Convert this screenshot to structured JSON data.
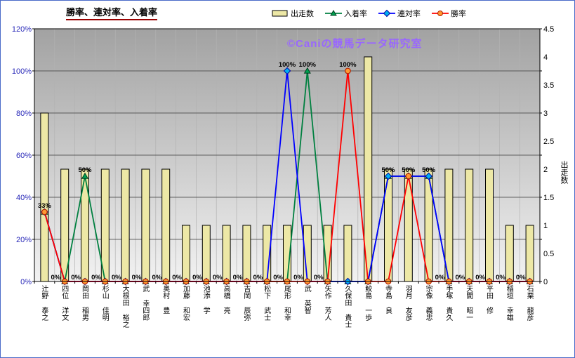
{
  "title": "勝率、連対率、入着率",
  "watermark": "©Caniの競馬データ研究室",
  "legend": [
    {
      "key": "starts",
      "label": "出走数",
      "type": "bar"
    },
    {
      "key": "place",
      "label": "入着率",
      "type": "line",
      "marker": "triangle",
      "line_color": "#008040",
      "fill_color": "#00A050",
      "edge_color": "#004020"
    },
    {
      "key": "quinella",
      "label": "連対率",
      "type": "line",
      "marker": "diamond",
      "line_color": "#0000FF",
      "fill_color": "#00B0F0",
      "edge_color": "#0000A0"
    },
    {
      "key": "win",
      "label": "勝率",
      "type": "line",
      "marker": "circle",
      "line_color": "#FF0000",
      "fill_color": "#FF9933",
      "edge_color": "#B22000"
    }
  ],
  "colors": {
    "plot_top": "#A2A2A2",
    "plot_bottom": "#F2F2F2",
    "left_axis_text": "#2828B8",
    "right_axis_text": "#000000",
    "gridline": "#3A3A3A",
    "vertical_gridline": "#B2B2B2",
    "title_underline": "#990000",
    "watermark_color": "#9966FF",
    "outer_border": "#4A6BC8"
  },
  "chart_data": {
    "type": "combo-bar-line",
    "categories": [
      "辻野 泰之",
      "四位 洋文",
      "岡田 稲男",
      "杉山 佳明",
      "大根田 裕之",
      "武 幸四郎",
      "奥村 豊",
      "加藤 和宏",
      "池添 学",
      "高橋 亮",
      "吉岡 辰弥",
      "松下 武士",
      "尾形 和幸",
      "武 英智",
      "矢作 芳人",
      "久保田 貴士",
      "鮫島 一歩",
      "寺島 良",
      "羽月 友彦",
      "宗像 義忠",
      "手塚 貴久",
      "天間 昭一",
      "平田 修",
      "稲垣 幸雄",
      "石栗 龍彦"
    ],
    "bar_series": {
      "name": "出走数",
      "axis": "right",
      "color": "#EDE8A6",
      "border": "#000000",
      "values": [
        3,
        2,
        2,
        2,
        2,
        2,
        2,
        1,
        1,
        1,
        1,
        1,
        1,
        1,
        1,
        1,
        4,
        2,
        2,
        2,
        2,
        2,
        2,
        1,
        1
      ]
    },
    "line_series": [
      {
        "name": "入着率",
        "axis": "left",
        "marker": "triangle",
        "line_color": "#008040",
        "fill_color": "#00A050",
        "edge_color": "#004020",
        "values": [
          33,
          0,
          50,
          0,
          0,
          0,
          0,
          0,
          0,
          0,
          0,
          0,
          0,
          100,
          0,
          0,
          0,
          50,
          50,
          50,
          0,
          0,
          0,
          0,
          0
        ]
      },
      {
        "name": "連対率",
        "axis": "left",
        "marker": "diamond",
        "line_color": "#0000FF",
        "fill_color": "#00B0F0",
        "edge_color": "#0000A0",
        "values": [
          33,
          0,
          0,
          0,
          0,
          0,
          0,
          0,
          0,
          0,
          0,
          0,
          100,
          0,
          0,
          0,
          0,
          50,
          50,
          50,
          0,
          0,
          0,
          0,
          0
        ]
      },
      {
        "name": "勝率",
        "axis": "left",
        "marker": "circle",
        "line_color": "#FF0000",
        "fill_color": "#FF9933",
        "edge_color": "#B22000",
        "values": [
          33,
          0,
          0,
          0,
          0,
          0,
          0,
          0,
          0,
          0,
          0,
          0,
          0,
          0,
          0,
          100,
          0,
          0,
          50,
          0,
          0,
          0,
          0,
          0,
          0
        ]
      }
    ],
    "left_axis": {
      "min": 0,
      "max": 120,
      "step": 20,
      "suffix": "%",
      "ticks": [
        "0%",
        "20%",
        "40%",
        "60%",
        "80%",
        "100%",
        "120%"
      ]
    },
    "right_axis": {
      "title": "出走数",
      "min": 0,
      "max": 4.5,
      "step": 0.5,
      "ticks": [
        "0",
        "0.5",
        "1",
        "1.5",
        "2",
        "2.5",
        "3",
        "3.5",
        "4",
        "4.5"
      ]
    },
    "point_labels": [
      {
        "i": 0,
        "pct": 33,
        "text": "33%",
        "pos": "above"
      },
      {
        "i": 2,
        "pct": 50,
        "text": "50%",
        "pos": "above"
      },
      {
        "i": 12,
        "pct": 100,
        "text": "100%",
        "pos": "above"
      },
      {
        "i": 13,
        "pct": 100,
        "text": "100%",
        "pos": "above"
      },
      {
        "i": 15,
        "pct": 100,
        "text": "100%",
        "pos": "above"
      },
      {
        "i": 17,
        "pct": 50,
        "text": "50%",
        "pos": "above"
      },
      {
        "i": 18,
        "pct": 50,
        "text": "50%",
        "pos": "above"
      },
      {
        "i": 19,
        "pct": 50,
        "text": "50%",
        "pos": "above"
      },
      {
        "i": 1,
        "pct": 0,
        "text": "0%",
        "pos": "left"
      },
      {
        "i": 2,
        "pct": 0,
        "text": "0%",
        "pos": "left"
      },
      {
        "i": 3,
        "pct": 0,
        "text": "0%",
        "pos": "left"
      },
      {
        "i": 4,
        "pct": 0,
        "text": "0%",
        "pos": "left"
      },
      {
        "i": 5,
        "pct": 0,
        "text": "0%",
        "pos": "left"
      },
      {
        "i": 6,
        "pct": 0,
        "text": "0%",
        "pos": "left"
      },
      {
        "i": 7,
        "pct": 0,
        "text": "0%",
        "pos": "left"
      },
      {
        "i": 8,
        "pct": 0,
        "text": "0%",
        "pos": "left"
      },
      {
        "i": 9,
        "pct": 0,
        "text": "0%",
        "pos": "left"
      },
      {
        "i": 10,
        "pct": 0,
        "text": "0%",
        "pos": "left"
      },
      {
        "i": 11,
        "pct": 0,
        "text": "0%",
        "pos": "left"
      },
      {
        "i": 12,
        "pct": 0,
        "text": "0%",
        "pos": "left"
      },
      {
        "i": 13,
        "pct": 0,
        "text": "0%",
        "pos": "left"
      },
      {
        "i": 14,
        "pct": 0,
        "text": "0%",
        "pos": "left"
      },
      {
        "i": 20,
        "pct": 0,
        "text": "0%",
        "pos": "left"
      },
      {
        "i": 21,
        "pct": 0,
        "text": "0%",
        "pos": "left"
      },
      {
        "i": 22,
        "pct": 0,
        "text": "0%",
        "pos": "left"
      },
      {
        "i": 23,
        "pct": 0,
        "text": "0%",
        "pos": "left"
      },
      {
        "i": 24,
        "pct": 0,
        "text": "0%",
        "pos": "left"
      }
    ]
  }
}
